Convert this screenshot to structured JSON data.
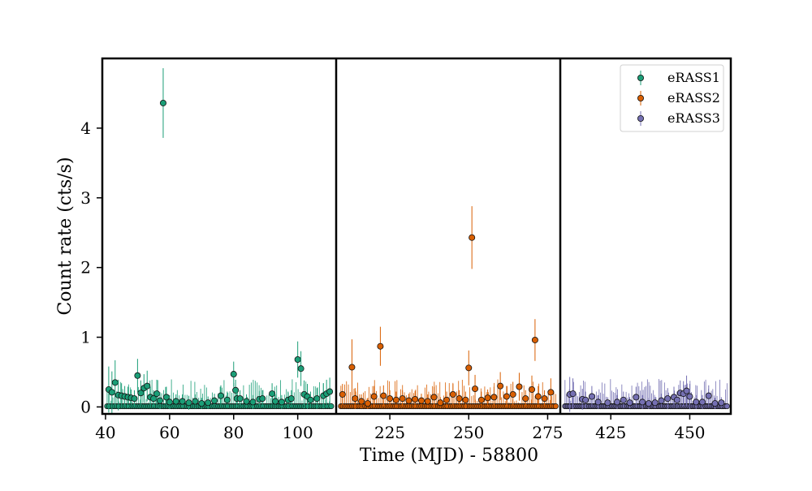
{
  "chart_data": {
    "type": "scatter",
    "xlabel": "Time (MJD) - 58800",
    "ylabel": "Count rate (cts/s)",
    "ylim": [
      -0.1,
      5.0
    ],
    "yticks": [
      0,
      1,
      2,
      3,
      4
    ],
    "legend": {
      "placement": "top-right",
      "entries": [
        "eRASS1",
        "eRASS2",
        "eRASS3"
      ]
    },
    "grid": false,
    "panels": [
      {
        "series": "eRASS1",
        "color": "#1b9e77",
        "xlim": [
          39,
          112
        ],
        "xticks": [
          40,
          60,
          80,
          100
        ],
        "points": [
          [
            41,
            0.25,
            0.33
          ],
          [
            42,
            0.21,
            0.3
          ],
          [
            43,
            0.35,
            0.32
          ],
          [
            44,
            0.17,
            0.22
          ],
          [
            45,
            0.16,
            0.18
          ],
          [
            46,
            0.15,
            0.15
          ],
          [
            47,
            0.14,
            0.15
          ],
          [
            48,
            0.13,
            0.12
          ],
          [
            49,
            0.12,
            0.12
          ],
          [
            50,
            0.45,
            0.24
          ],
          [
            51,
            0.2,
            0.18
          ],
          [
            52,
            0.27,
            0.2
          ],
          [
            53,
            0.3,
            0.22
          ],
          [
            54,
            0.14,
            0.15
          ],
          [
            55,
            0.12,
            0.12
          ],
          [
            56,
            0.19,
            0.2
          ],
          [
            57,
            0.09,
            0.12
          ],
          [
            58,
            4.36,
            0.5
          ],
          [
            59,
            0.14,
            0.15
          ],
          [
            60,
            0.07,
            0.1
          ],
          [
            62,
            0.08,
            0.1
          ],
          [
            64,
            0.08,
            0.1
          ],
          [
            66,
            0.06,
            0.1
          ],
          [
            68,
            0.08,
            0.1
          ],
          [
            70,
            0.05,
            0.08
          ],
          [
            72,
            0.06,
            0.09
          ],
          [
            74,
            0.09,
            0.1
          ],
          [
            76,
            0.16,
            0.15
          ],
          [
            78,
            0.1,
            0.12
          ],
          [
            80,
            0.47,
            0.18
          ],
          [
            80.6,
            0.24,
            0.15
          ],
          [
            81,
            0.12,
            0.12
          ],
          [
            82,
            0.12,
            0.12
          ],
          [
            84,
            0.08,
            0.1
          ],
          [
            86,
            0.07,
            0.1
          ],
          [
            88,
            0.11,
            0.12
          ],
          [
            89,
            0.12,
            0.12
          ],
          [
            92,
            0.19,
            0.15
          ],
          [
            93,
            0.08,
            0.1
          ],
          [
            95,
            0.07,
            0.1
          ],
          [
            97,
            0.1,
            0.12
          ],
          [
            98,
            0.12,
            0.12
          ],
          [
            100,
            0.68,
            0.26
          ],
          [
            101,
            0.55,
            0.25
          ],
          [
            102,
            0.18,
            0.2
          ],
          [
            103,
            0.15,
            0.18
          ],
          [
            104,
            0.1,
            0.12
          ],
          [
            106,
            0.12,
            0.15
          ],
          [
            108,
            0.16,
            0.18
          ],
          [
            109,
            0.19,
            0.2
          ],
          [
            110,
            0.22,
            0.2
          ]
        ]
      },
      {
        "series": "eRASS2",
        "color": "#d95f02",
        "xlim": [
          208,
          279
        ],
        "xticks": [
          225,
          250,
          275
        ],
        "points": [
          [
            210,
            0.18,
            0.15
          ],
          [
            213,
            0.57,
            0.4
          ],
          [
            214,
            0.12,
            0.15
          ],
          [
            216,
            0.08,
            0.1
          ],
          [
            218,
            0.05,
            0.08
          ],
          [
            220,
            0.15,
            0.15
          ],
          [
            222,
            0.87,
            0.28
          ],
          [
            223,
            0.16,
            0.15
          ],
          [
            225,
            0.12,
            0.12
          ],
          [
            227,
            0.1,
            0.12
          ],
          [
            229,
            0.12,
            0.12
          ],
          [
            231,
            0.09,
            0.1
          ],
          [
            233,
            0.11,
            0.12
          ],
          [
            235,
            0.09,
            0.1
          ],
          [
            237,
            0.08,
            0.1
          ],
          [
            239,
            0.14,
            0.15
          ],
          [
            241,
            0.06,
            0.08
          ],
          [
            243,
            0.1,
            0.12
          ],
          [
            245,
            0.18,
            0.15
          ],
          [
            247,
            0.12,
            0.12
          ],
          [
            249,
            0.1,
            0.12
          ],
          [
            250,
            0.56,
            0.25
          ],
          [
            251,
            2.43,
            0.45
          ],
          [
            252,
            0.26,
            0.2
          ],
          [
            254,
            0.1,
            0.12
          ],
          [
            256,
            0.13,
            0.12
          ],
          [
            258,
            0.14,
            0.15
          ],
          [
            260,
            0.3,
            0.2
          ],
          [
            262,
            0.15,
            0.15
          ],
          [
            264,
            0.18,
            0.18
          ],
          [
            266,
            0.29,
            0.2
          ],
          [
            268,
            0.12,
            0.12
          ],
          [
            270,
            0.25,
            0.2
          ],
          [
            271,
            0.96,
            0.3
          ],
          [
            272,
            0.15,
            0.15
          ],
          [
            274,
            0.12,
            0.12
          ],
          [
            276,
            0.21,
            0.2
          ]
        ]
      },
      {
        "series": "eRASS3",
        "color": "#7570b3",
        "xlim": [
          409,
          463
        ],
        "xticks": [
          425,
          450
        ],
        "points": [
          [
            412,
            0.18,
            0.25
          ],
          [
            413,
            0.19,
            0.22
          ],
          [
            416,
            0.11,
            0.15
          ],
          [
            417,
            0.1,
            0.12
          ],
          [
            419,
            0.15,
            0.15
          ],
          [
            421,
            0.07,
            0.1
          ],
          [
            424,
            0.06,
            0.08
          ],
          [
            427,
            0.07,
            0.1
          ],
          [
            429,
            0.1,
            0.12
          ],
          [
            431,
            0.06,
            0.08
          ],
          [
            433,
            0.14,
            0.15
          ],
          [
            435,
            0.07,
            0.1
          ],
          [
            437,
            0.05,
            0.08
          ],
          [
            439,
            0.06,
            0.08
          ],
          [
            441,
            0.09,
            0.1
          ],
          [
            443,
            0.12,
            0.15
          ],
          [
            445,
            0.14,
            0.15
          ],
          [
            446,
            0.1,
            0.12
          ],
          [
            447,
            0.2,
            0.18
          ],
          [
            448,
            0.19,
            0.18
          ],
          [
            449,
            0.23,
            0.22
          ],
          [
            450,
            0.15,
            0.18
          ],
          [
            452,
            0.07,
            0.1
          ],
          [
            454,
            0.07,
            0.1
          ],
          [
            456,
            0.16,
            0.15
          ],
          [
            458,
            0.05,
            0.08
          ],
          [
            460,
            0.06,
            0.08
          ]
        ]
      }
    ]
  }
}
